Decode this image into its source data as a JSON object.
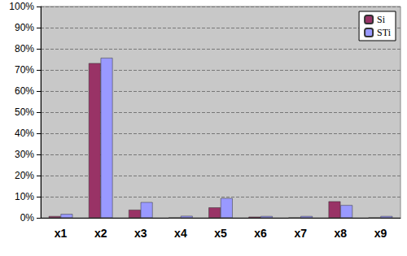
{
  "chart_data": {
    "type": "bar",
    "categories": [
      "x1",
      "x2",
      "x3",
      "x4",
      "x5",
      "x6",
      "x7",
      "x8",
      "x9"
    ],
    "series": [
      {
        "name": "Si",
        "color": "#993366",
        "values": [
          0.8,
          73.2,
          3.8,
          0,
          4.9,
          0.5,
          0,
          7.8,
          0
        ]
      },
      {
        "name": "STi",
        "color": "#9999FF",
        "values": [
          1.8,
          75.7,
          7.4,
          0.9,
          9.3,
          0.8,
          0.8,
          6.0,
          0.8
        ]
      }
    ],
    "ylim": [
      0,
      100
    ],
    "yticks": [
      {
        "value": 0,
        "label": "0%"
      },
      {
        "value": 10,
        "label": "10%"
      },
      {
        "value": 20,
        "label": "20%"
      },
      {
        "value": 30,
        "label": "30%"
      },
      {
        "value": 40,
        "label": "40%"
      },
      {
        "value": 50,
        "label": "50%"
      },
      {
        "value": 60,
        "label": "60%"
      },
      {
        "value": 70,
        "label": "70%"
      },
      {
        "value": 80,
        "label": "80%"
      },
      {
        "value": 90,
        "label": "90%"
      },
      {
        "value": 100,
        "label": "100%"
      }
    ],
    "grid": true,
    "legend": "top-right"
  }
}
